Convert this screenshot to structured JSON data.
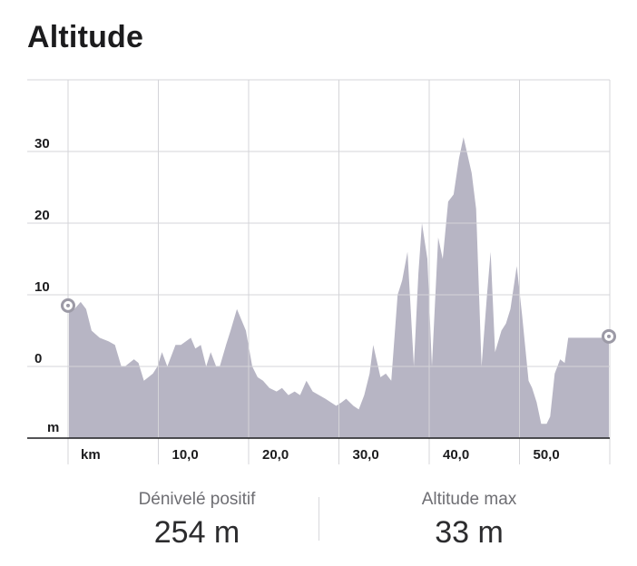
{
  "page": {
    "title": "Altitude"
  },
  "stats": [
    {
      "label": "Dénivelé positif",
      "value": "254 m"
    },
    {
      "label": "Altitude max",
      "value": "33 m"
    }
  ],
  "chart_data": {
    "type": "area",
    "title": "Altitude",
    "xlabel": "km",
    "ylabel": "m",
    "xlim": [
      0,
      60
    ],
    "ylim": [
      -10,
      40
    ],
    "x_ticks": [
      10,
      20,
      30,
      40,
      50
    ],
    "x_tick_labels": [
      "10,0",
      "20,0",
      "30,0",
      "40,0",
      "50,0"
    ],
    "y_ticks": [
      0,
      10,
      20,
      30
    ],
    "y_tick_labels": [
      "0",
      "10",
      "20",
      "30"
    ],
    "grid": true,
    "fill_color": "#b7b5c4",
    "marker_color": "#9c9aa6",
    "series": [
      {
        "x": [
          0.1,
          0.7,
          1.4,
          2.0,
          2.6,
          3.5,
          4.5,
          5.2,
          5.9,
          6.3,
          7.3,
          7.8,
          8.4,
          9.4,
          9.9,
          10.4,
          11.0,
          11.9,
          12.5,
          13.6,
          14.1,
          14.7,
          15.3,
          15.8,
          16.4,
          16.8,
          17.5,
          18.0,
          18.7,
          19.7,
          20.4,
          21.0,
          21.6,
          22.3,
          23.1,
          23.7,
          24.4,
          25.1,
          25.7,
          26.4,
          27.1,
          27.8,
          28.5,
          29.1,
          29.7,
          30.3,
          30.8,
          31.6,
          32.2,
          32.8,
          33.4,
          33.8,
          34.6,
          35.2,
          35.8,
          36.5,
          37.0,
          37.6,
          38.3,
          38.8,
          39.2,
          39.8,
          40.3,
          41.0,
          41.5,
          42.1,
          42.7,
          43.3,
          43.8,
          44.7,
          45.2,
          45.8,
          46.4,
          46.8,
          47.3,
          48.0,
          48.5,
          49.0,
          49.7,
          50.3,
          51.0,
          51.4,
          51.9,
          52.4,
          53.0,
          53.4,
          53.9,
          54.5,
          55.0,
          55.4,
          55.9,
          56.5,
          57.0,
          57.4,
          57.9,
          58.4,
          58.9,
          59.3,
          59.9
        ],
        "values": [
          8,
          8,
          9,
          8,
          5,
          4,
          3.5,
          3,
          0,
          0,
          1,
          0.5,
          -2,
          -1,
          0,
          2,
          0,
          3,
          3,
          4,
          2.5,
          3,
          0,
          2,
          0,
          0,
          3,
          5,
          8,
          5,
          0,
          -1.5,
          -2,
          -3,
          -3.5,
          -3,
          -4,
          -3.5,
          -4,
          -2,
          -3.5,
          -4,
          -4.5,
          -5,
          -5.5,
          -5,
          -4.5,
          -5.5,
          -6,
          -4,
          -1,
          3,
          -1.5,
          -1,
          -2,
          10,
          12,
          16,
          0,
          13,
          20,
          15,
          0,
          18,
          15,
          23,
          24,
          29,
          32,
          27,
          22,
          0,
          10,
          16,
          2,
          5,
          6,
          8,
          14,
          7,
          -2,
          -3,
          -5,
          -8,
          -8,
          -7,
          -1,
          1,
          0.5,
          4,
          4,
          4,
          4,
          4,
          4,
          4,
          4,
          4,
          4
        ]
      }
    ],
    "start_marker": {
      "x": 0,
      "y": 8.5
    },
    "end_marker": {
      "x": 59.9,
      "y": 4.2
    }
  }
}
